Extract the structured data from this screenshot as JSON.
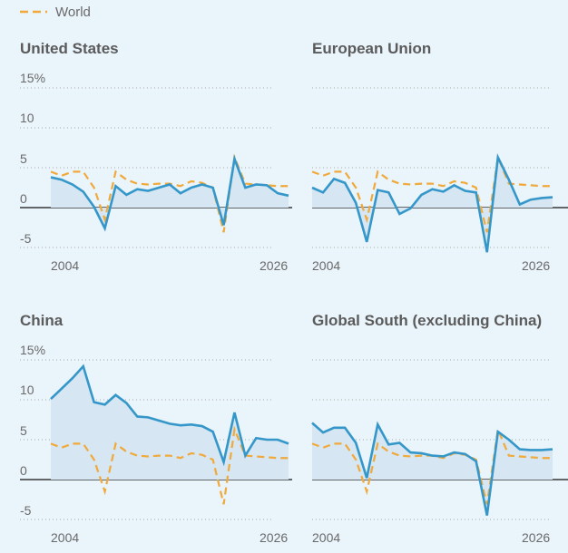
{
  "colors": {
    "background": "#eaf4fb",
    "area_fill": "#d6e6f2",
    "series_line": "#3597c9",
    "world_line": "#f0a93b",
    "gridline": "#aaaaaa",
    "zero_line": "#111111"
  },
  "legend": {
    "label": "World",
    "placement": "top-left"
  },
  "chart_data": [
    {
      "type": "area",
      "title": "United States",
      "y_tick_labels": [
        "15%",
        "10",
        "5",
        "0",
        "-5"
      ],
      "y_ticks": [
        15,
        10,
        5,
        0,
        -5
      ],
      "ylim": [
        -5,
        15
      ],
      "x_tick_labels": [
        "2004",
        "2026"
      ],
      "x_ticks": [
        2004,
        2026
      ],
      "xlim": [
        2004,
        2026
      ],
      "grid": "dotted horizontal",
      "x": [
        2004,
        2005,
        2006,
        2007,
        2008,
        2009,
        2010,
        2011,
        2012,
        2013,
        2014,
        2015,
        2016,
        2017,
        2018,
        2019,
        2020,
        2021,
        2022,
        2023,
        2024,
        2025,
        2026
      ],
      "series": [
        {
          "values": [
            3.8,
            3.5,
            2.9,
            2.0,
            0.1,
            -2.6,
            2.7,
            1.6,
            2.3,
            2.1,
            2.5,
            2.9,
            1.8,
            2.5,
            2.9,
            2.5,
            -2.2,
            6.1,
            2.5,
            2.9,
            2.8,
            1.8,
            1.5
          ]
        },
        {
          "name": "World",
          "values": [
            4.5,
            4.0,
            4.5,
            4.5,
            2.5,
            -1.5,
            4.5,
            3.5,
            3.0,
            2.9,
            3.0,
            3.0,
            2.7,
            3.3,
            3.1,
            2.5,
            -3.1,
            6.3,
            3.0,
            2.9,
            2.8,
            2.7,
            2.7
          ]
        }
      ]
    },
    {
      "type": "area",
      "title": "European Union",
      "y_ticks": [
        15,
        10,
        5,
        0,
        -5
      ],
      "ylim": [
        -5,
        15
      ],
      "x_tick_labels": [
        "2004",
        "2026"
      ],
      "x_ticks": [
        2004,
        2026
      ],
      "xlim": [
        2004,
        2026
      ],
      "grid": "dotted horizontal",
      "x": [
        2004,
        2005,
        2006,
        2007,
        2008,
        2009,
        2010,
        2011,
        2012,
        2013,
        2014,
        2015,
        2016,
        2017,
        2018,
        2019,
        2020,
        2021,
        2022,
        2023,
        2024,
        2025,
        2026
      ],
      "series": [
        {
          "values": [
            2.5,
            1.9,
            3.6,
            3.1,
            0.6,
            -4.3,
            2.2,
            1.9,
            -0.8,
            -0.1,
            1.6,
            2.3,
            2.0,
            2.8,
            2.1,
            1.9,
            -5.6,
            6.3,
            3.5,
            0.4,
            1.0,
            1.2,
            1.3
          ]
        },
        {
          "name": "World",
          "values": [
            4.5,
            4.0,
            4.5,
            4.5,
            2.5,
            -1.5,
            4.5,
            3.5,
            3.0,
            2.9,
            3.0,
            3.0,
            2.7,
            3.3,
            3.1,
            2.5,
            -3.1,
            6.3,
            3.0,
            2.9,
            2.8,
            2.7,
            2.7
          ]
        }
      ]
    },
    {
      "type": "area",
      "title": "China",
      "y_tick_labels": [
        "15%",
        "10",
        "5",
        "0",
        "-5"
      ],
      "y_ticks": [
        15,
        10,
        5,
        0,
        -5
      ],
      "ylim": [
        -5,
        15
      ],
      "x_tick_labels": [
        "2004",
        "2026"
      ],
      "x_ticks": [
        2004,
        2026
      ],
      "xlim": [
        2004,
        2026
      ],
      "grid": "dotted horizontal",
      "x": [
        2004,
        2005,
        2006,
        2007,
        2008,
        2009,
        2010,
        2011,
        2012,
        2013,
        2014,
        2015,
        2016,
        2017,
        2018,
        2019,
        2020,
        2021,
        2022,
        2023,
        2024,
        2025,
        2026
      ],
      "series": [
        {
          "values": [
            10.1,
            11.4,
            12.7,
            14.2,
            9.7,
            9.4,
            10.6,
            9.6,
            7.9,
            7.8,
            7.4,
            7.0,
            6.8,
            6.9,
            6.7,
            6.0,
            2.2,
            8.4,
            3.0,
            5.2,
            5.0,
            5.0,
            4.5
          ]
        },
        {
          "name": "World",
          "values": [
            4.5,
            4.0,
            4.5,
            4.5,
            2.5,
            -1.5,
            4.5,
            3.5,
            3.0,
            2.9,
            3.0,
            3.0,
            2.7,
            3.3,
            3.1,
            2.5,
            -3.1,
            6.3,
            3.0,
            2.9,
            2.8,
            2.7,
            2.7
          ]
        }
      ]
    },
    {
      "type": "area",
      "title": "Global South (excluding China)",
      "y_ticks": [
        15,
        10,
        5,
        0,
        -5
      ],
      "ylim": [
        -5,
        15
      ],
      "x_tick_labels": [
        "2004",
        "2026"
      ],
      "x_ticks": [
        2004,
        2026
      ],
      "xlim": [
        2004,
        2026
      ],
      "grid": "dotted horizontal",
      "x": [
        2004,
        2005,
        2006,
        2007,
        2008,
        2009,
        2010,
        2011,
        2012,
        2013,
        2014,
        2015,
        2016,
        2017,
        2018,
        2019,
        2020,
        2021,
        2022,
        2023,
        2024,
        2025,
        2026
      ],
      "series": [
        {
          "values": [
            7.1,
            5.9,
            6.5,
            6.5,
            4.6,
            0.2,
            6.9,
            4.4,
            4.6,
            3.4,
            3.3,
            3.0,
            2.9,
            3.4,
            3.2,
            2.3,
            -4.5,
            6.0,
            5.0,
            3.8,
            3.7,
            3.7,
            3.8
          ]
        },
        {
          "name": "World",
          "values": [
            4.5,
            4.0,
            4.5,
            4.5,
            2.5,
            -1.5,
            4.5,
            3.5,
            3.0,
            2.9,
            3.0,
            3.0,
            2.7,
            3.3,
            3.1,
            2.5,
            -3.1,
            6.3,
            3.0,
            2.9,
            2.8,
            2.7,
            2.7
          ]
        }
      ]
    }
  ]
}
